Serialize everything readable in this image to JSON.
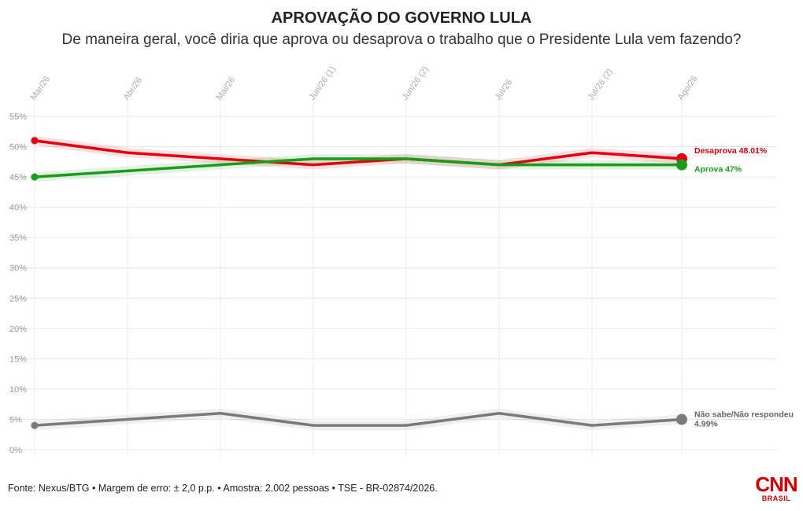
{
  "header": {
    "title": "APROVAÇÃO DO GOVERNO LULA",
    "subtitle": "De maneira geral, você diria que aprova ou desaprova o trabalho que o Presidente Lula vem fazendo?"
  },
  "chart_data": {
    "type": "line",
    "title": "APROVAÇÃO DO GOVERNO LULA",
    "subtitle": "De maneira geral, você diria que aprova ou desaprova o trabalho que o Presidente Lula vem fazendo?",
    "categories": [
      "Mar/26",
      "Abr/26",
      "Mai/26",
      "Jun/26 (1)",
      "Jun/26 (2)",
      "Jul/26",
      "Jul/26 (2)",
      "Ago/26"
    ],
    "y_ticks": [
      "0%",
      "5%",
      "10%",
      "15%",
      "20%",
      "25%",
      "30%",
      "35%",
      "40%",
      "45%",
      "50%",
      "55%"
    ],
    "ylim": [
      0,
      55
    ],
    "grid": true,
    "series": [
      {
        "name": "Desaprova",
        "end_label": "Desaprova 48.01%",
        "color": "#e3000f",
        "values": [
          51,
          49,
          48,
          47,
          48,
          47,
          49,
          48.01
        ]
      },
      {
        "name": "Aprova",
        "end_label": "Aprova 47%",
        "color": "#1a9b1a",
        "values": [
          45,
          46,
          47,
          48,
          48,
          47,
          47,
          47
        ]
      },
      {
        "name": "Não sabe/Não respondeu",
        "end_label": "Não sabe/Não respondeu",
        "end_label_value": "4.99%",
        "color": "#7a7a7a",
        "values": [
          4,
          5,
          6,
          4,
          4,
          6,
          4,
          4.99
        ]
      }
    ]
  },
  "footer": {
    "source": "Fonte: Nexus/BTG • Margem de erro: ± 2,0 p.p. • Amostra: 2.002 pessoas • TSE - BR-02874/2026."
  },
  "logo": {
    "brand": "CNN",
    "region": "BRASIL"
  }
}
